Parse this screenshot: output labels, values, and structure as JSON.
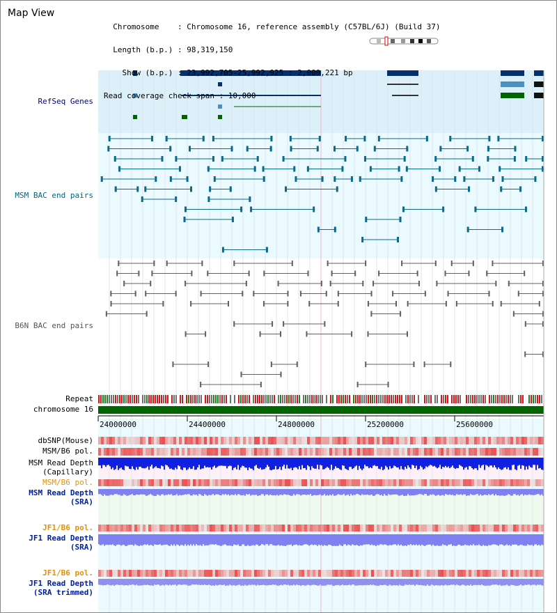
{
  "header": {
    "title": "Map View",
    "info_lines": [
      "  Chromosome    : Chromosome 16, reference assembly (C57BL/6J) (Build 37)",
      "  Length (b.p.) : 98,319,150",
      "    Show (b.p.) : 23,992,705-25,992,925 : 2,000,221 bp",
      "Read coverage check span : 10,000"
    ]
  },
  "tracks": {
    "refseq": "RefSeq Genes",
    "msm_bac": "MSM BAC end pairs",
    "b6n_bac": "B6N BAC end pairs",
    "repeat": "Repeat",
    "chromosome": "chromosome 16",
    "dbsnp": "dbSNP(Mouse)",
    "msm_pol": "MSM/B6 pol.",
    "msm_depth_cap_1": "MSM Read Depth",
    "msm_depth_cap_2": "(Capillary)",
    "msm_pol2": "MSM/B6 pol.",
    "msm_depth_sra_1": "MSM Read Depth",
    "msm_depth_sra_2": "(SRA)",
    "jf1_pol": "JF1/B6 pol.",
    "jf1_depth_1": "JF1 Read Depth",
    "jf1_depth_2": "(SRA)",
    "jf1_pol2": "JF1/B6 pol.",
    "jf1_trim_1": "JF1 Read Depth",
    "jf1_trim_2": "(SRA trimmed)"
  },
  "ruler": {
    "ticks": [
      "24000000",
      "24400000",
      "24800000",
      "25200000",
      "25600000"
    ]
  },
  "colors": {
    "refseq_bg": "#dcf0fa",
    "bac_bg": "#eafaff",
    "gene_dark": "#062f6e",
    "gene_mid": "#4a90c0",
    "gene_green": "#006400",
    "msm_bac": "#0b6a8a",
    "b6n_bac": "#606060",
    "chrom": "#006400",
    "depth_dark": "#1020e0",
    "depth_light": "#8080f0",
    "pol_red": "#e83030",
    "label_blue": "#000080",
    "label_orange": "#e89000",
    "label_teal": "#006680"
  },
  "icons": {
    "ideogram": "chromosome-ideogram-icon"
  }
}
